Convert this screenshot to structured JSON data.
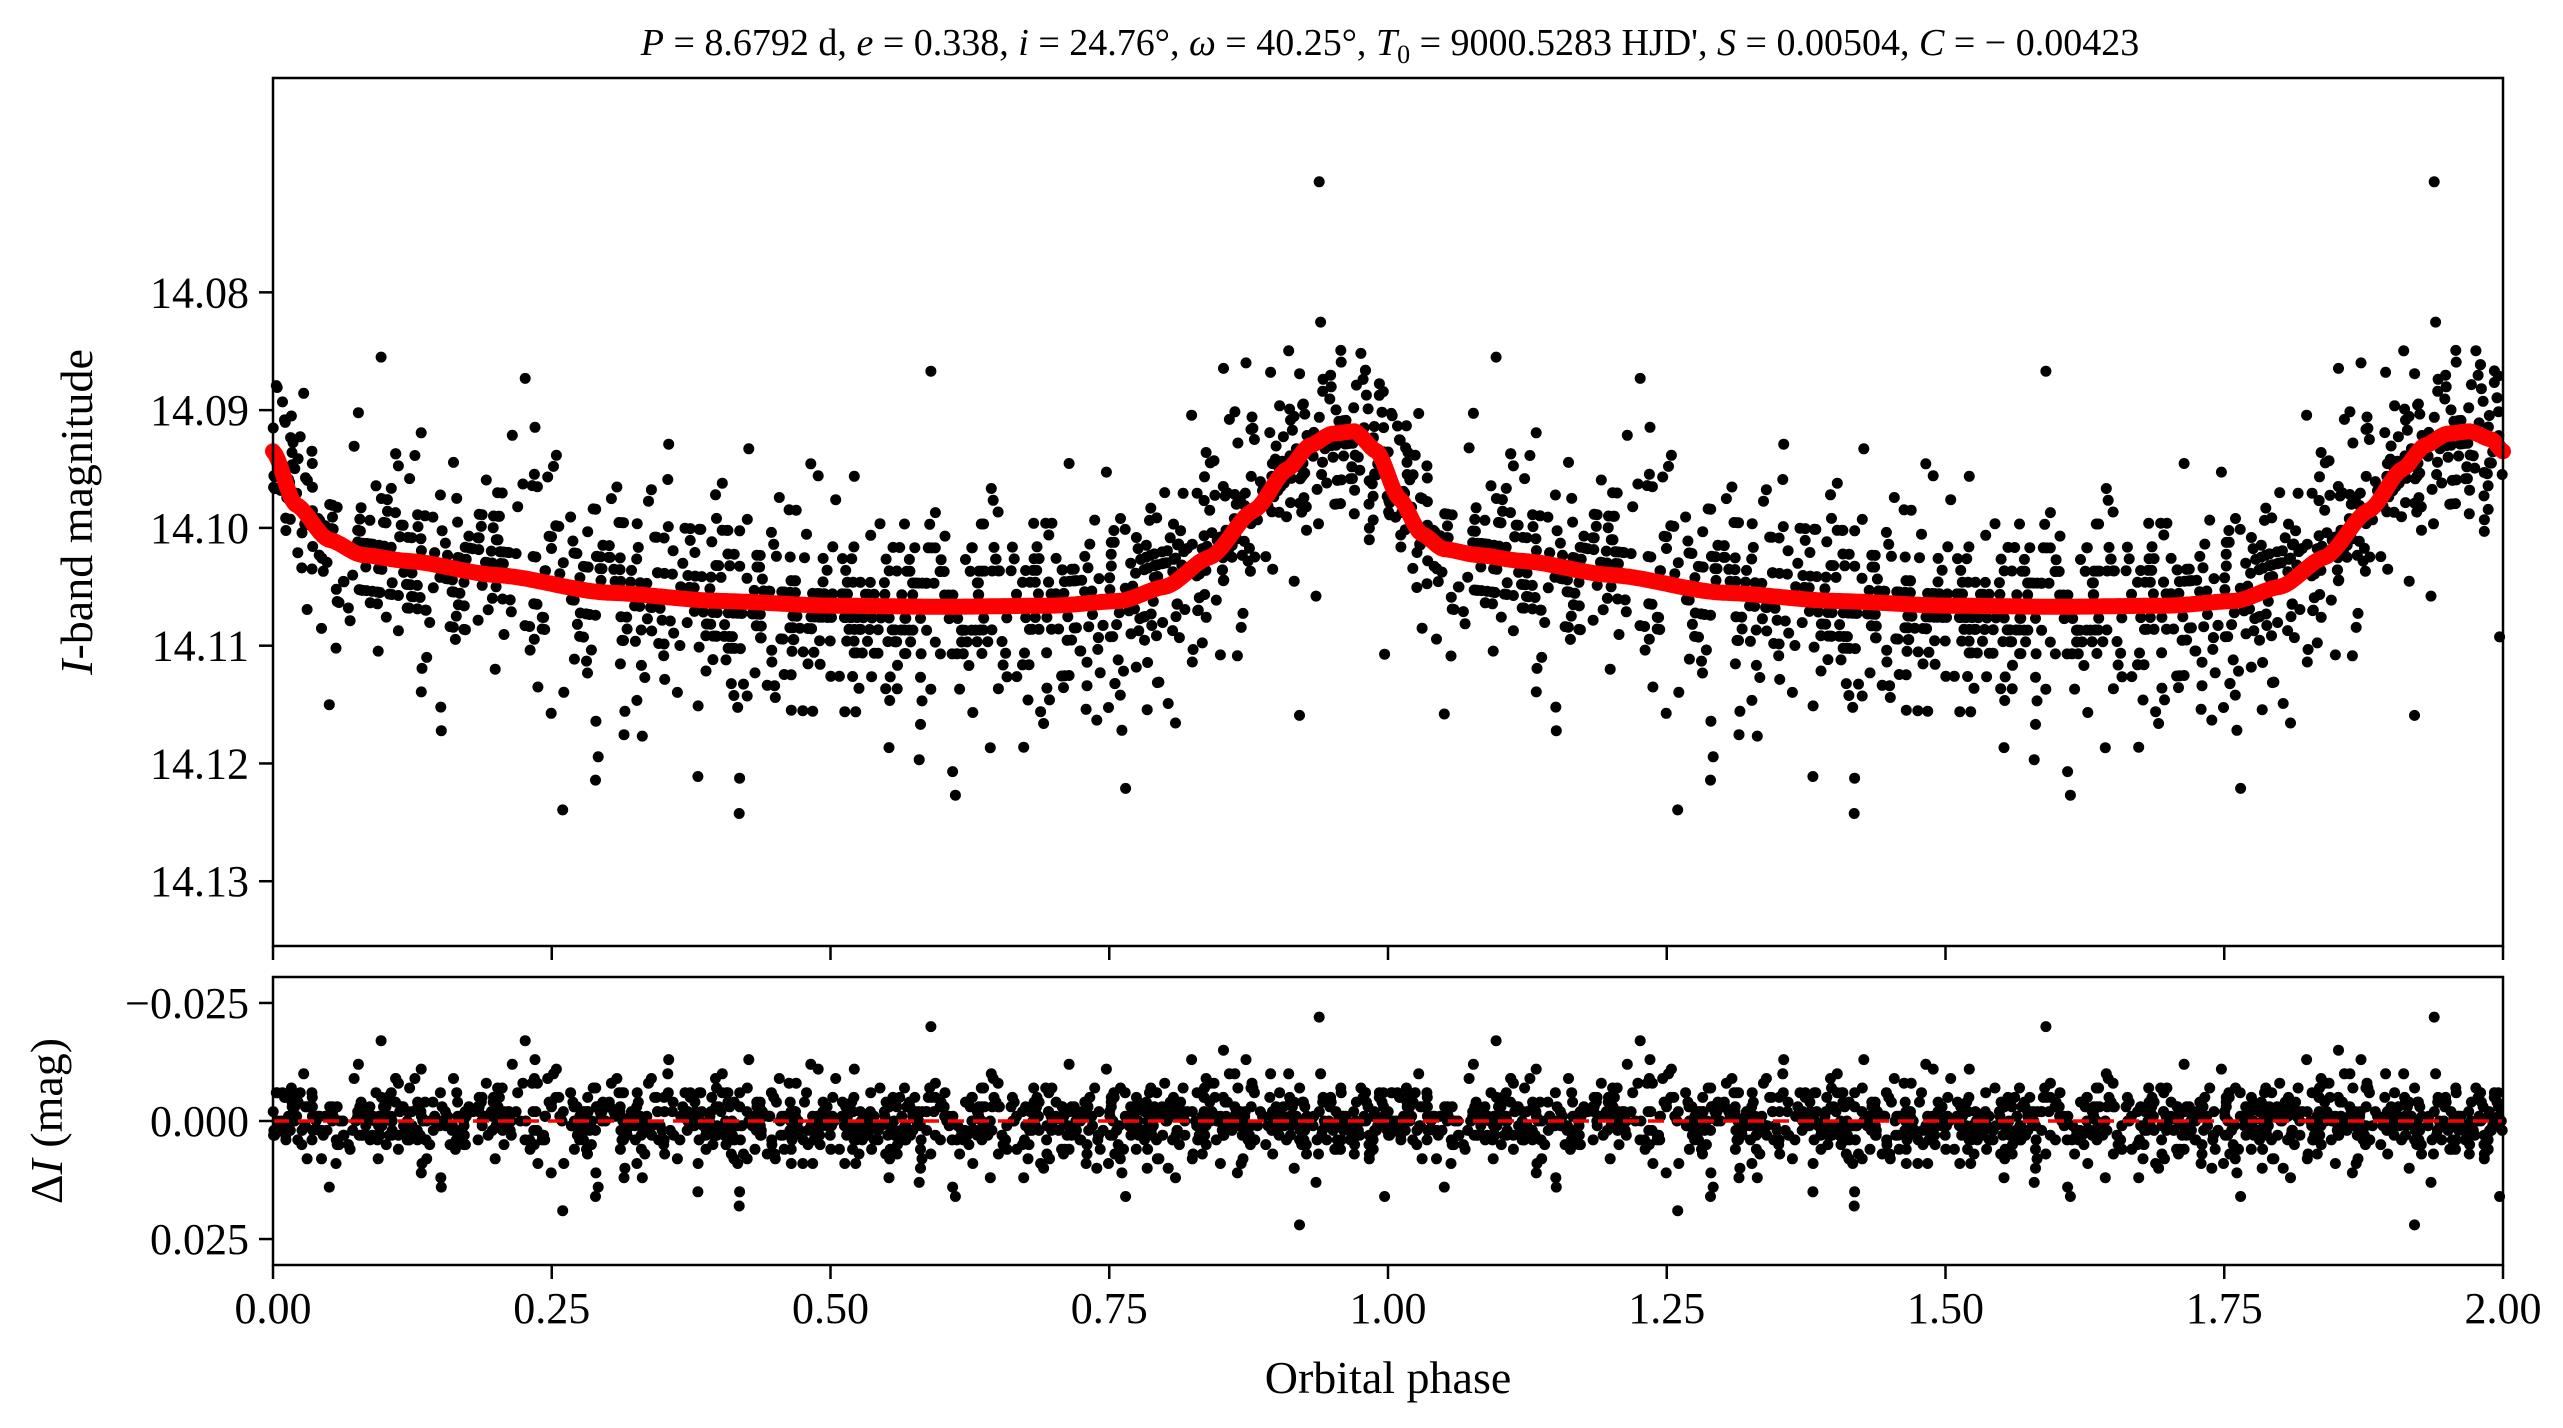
{
  "chart_data": [
    {
      "panel": "top",
      "type": "scatter",
      "title": "P = 8.6792 d, e = 0.338, i = 24.76°, ω = 40.25°, T0 = 9000.5283 HJD', S = 0.00504, C = −0.00423",
      "title_parts": {
        "P_sym": "P",
        "P_val": " = 8.6792 d, ",
        "e_sym": "e",
        "e_val": " = 0.338, ",
        "i_sym": "i",
        "i_val": " = 24.76°, ",
        "w_sym": "ω",
        "w_val": " = 40.25°, ",
        "T_sym": "T",
        "T_sub": "0",
        "T_val": " = 9000.5283 HJD', ",
        "S_sym": "S",
        "S_val": " = 0.00504, ",
        "C_sym": "C",
        "C_val": " = − 0.00423"
      },
      "ylabel_italic": "I",
      "ylabel_rest": "-band magnitude",
      "ylim": [
        14.1355,
        14.0618
      ],
      "y_inverted": true,
      "xlim": [
        0.0,
        2.0
      ],
      "yticks": [
        14.08,
        14.09,
        14.1,
        14.11,
        14.12,
        14.13
      ],
      "ytick_labels": [
        "14.08",
        "14.09",
        "14.10",
        "14.11",
        "14.12",
        "14.13"
      ],
      "model": {
        "color": "#ff0000",
        "phase": [
          0.0,
          0.02,
          0.05,
          0.08,
          0.12,
          0.2,
          0.3,
          0.4,
          0.5,
          0.6,
          0.7,
          0.76,
          0.8,
          0.84,
          0.88,
          0.91,
          0.93,
          0.95,
          0.97,
          0.99,
          1.01,
          1.03,
          1.05,
          1.08,
          1.12,
          1.2,
          1.3,
          1.4,
          1.5,
          1.6,
          1.7,
          1.76,
          1.8,
          1.84,
          1.88,
          1.91,
          1.93,
          1.95,
          1.97,
          1.99,
          2.0
        ],
        "magnitude": [
          14.0935,
          14.098,
          14.101,
          14.1023,
          14.1028,
          14.104,
          14.1055,
          14.1062,
          14.1066,
          14.1067,
          14.1066,
          14.1062,
          14.105,
          14.1025,
          14.0985,
          14.095,
          14.093,
          14.092,
          14.0918,
          14.0935,
          14.0975,
          14.1005,
          14.1018,
          14.1023,
          14.1028,
          14.104,
          14.1055,
          14.1062,
          14.1066,
          14.1067,
          14.1066,
          14.1062,
          14.105,
          14.1025,
          14.0985,
          14.095,
          14.093,
          14.092,
          14.0918,
          14.0925,
          14.0935
        ]
      },
      "points_description": "black dots: observed I-band magnitudes, phase-folded and repeated twice (phase 0-2)"
    },
    {
      "panel": "bottom",
      "type": "scatter",
      "ylabel_prefix": "Δ",
      "ylabel_italic": "I",
      "ylabel_rest": " (mag)",
      "xlabel": "Orbital phase",
      "xlim": [
        0.0,
        2.0
      ],
      "ylim": [
        0.0305,
        -0.0305
      ],
      "y_inverted": true,
      "xticks": [
        0.0,
        0.25,
        0.5,
        0.75,
        1.0,
        1.25,
        1.5,
        1.75,
        2.0
      ],
      "xtick_labels": [
        "0.00",
        "0.25",
        "0.50",
        "0.75",
        "1.00",
        "1.25",
        "1.50",
        "1.75",
        "2.00"
      ],
      "yticks": [
        -0.025,
        0.0,
        0.025
      ],
      "ytick_labels": [
        "−0.025",
        "0.000",
        "0.025"
      ],
      "zero_line": {
        "value": 0.0,
        "color": "#ff0000",
        "style": "dashed"
      },
      "points_description": "black dots: residuals (observed − model)"
    }
  ]
}
